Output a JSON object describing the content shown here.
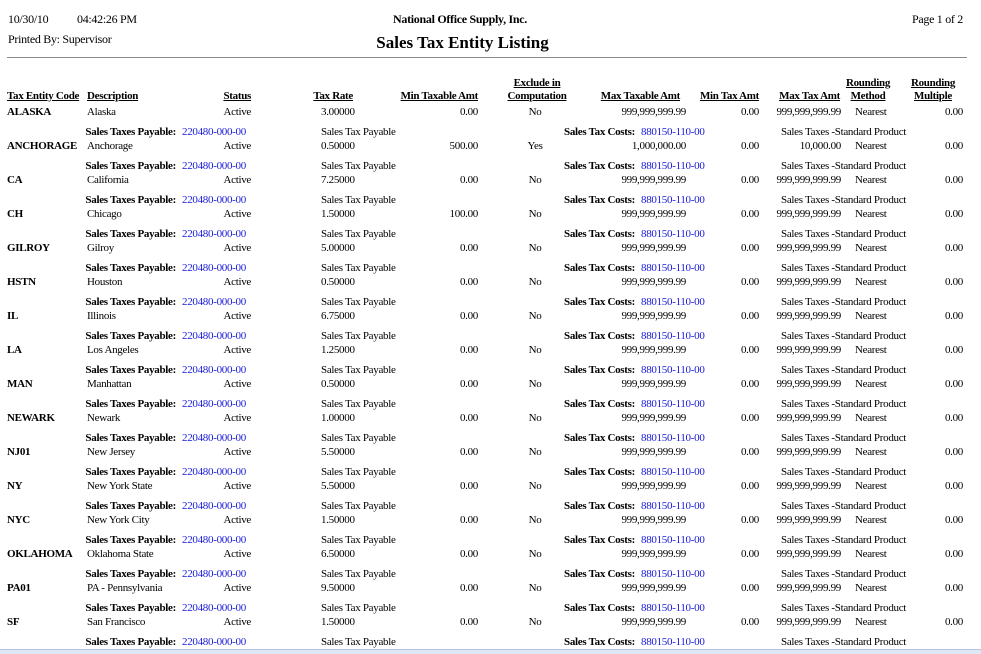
{
  "header": {
    "date": "10/30/10",
    "time": "04:42:26 PM",
    "printed_by": "Printed By: Supervisor",
    "company": "National Office Supply, Inc.",
    "title": "Sales Tax Entity Listing",
    "page": "Page 1 of 2"
  },
  "columns": {
    "code": "Tax Entity Code",
    "description": "Description",
    "status": "Status",
    "tax_rate": "Tax Rate",
    "min_taxable": "Min Taxable Amt",
    "exclude_1": "Exclude in",
    "exclude_2": "Computation",
    "max_taxable": "Max Taxable Amt",
    "min_tax": "Min Tax Amt",
    "max_tax": "Max Tax Amt",
    "method_1": "Rounding",
    "method_2": "Method",
    "multiple_1": "Rounding",
    "multiple_2": "Multiple"
  },
  "detail_labels": {
    "payable_label": "Sales Taxes Payable:",
    "payable_account": "220480-000-00",
    "payable_desc": "Sales Tax Payable",
    "costs_label": "Sales Tax Costs:",
    "costs_account": "880150-110-00",
    "costs_desc": "Sales Taxes -Standard Product"
  },
  "rows": [
    {
      "code": "ALASKA",
      "description": "Alaska",
      "status": "Active",
      "tax_rate": "3.00000",
      "min_taxable": "0.00",
      "exclude": "No",
      "max_taxable": "999,999,999.99",
      "min_tax": "0.00",
      "max_tax": "999,999,999.99",
      "method": "Nearest",
      "multiple": "0.00"
    },
    {
      "code": "ANCHORAGE",
      "description": "Anchorage",
      "status": "Active",
      "tax_rate": "0.50000",
      "min_taxable": "500.00",
      "exclude": "Yes",
      "max_taxable": "1,000,000.00",
      "min_tax": "0.00",
      "max_tax": "10,000.00",
      "method": "Nearest",
      "multiple": "0.00"
    },
    {
      "code": "CA",
      "description": "California",
      "status": "Active",
      "tax_rate": "7.25000",
      "min_taxable": "0.00",
      "exclude": "No",
      "max_taxable": "999,999,999.99",
      "min_tax": "0.00",
      "max_tax": "999,999,999.99",
      "method": "Nearest",
      "multiple": "0.00"
    },
    {
      "code": "CH",
      "description": "Chicago",
      "status": "Active",
      "tax_rate": "1.50000",
      "min_taxable": "100.00",
      "exclude": "No",
      "max_taxable": "999,999,999.99",
      "min_tax": "0.00",
      "max_tax": "999,999,999.99",
      "method": "Nearest",
      "multiple": "0.00"
    },
    {
      "code": "GILROY",
      "description": "Gilroy",
      "status": "Active",
      "tax_rate": "5.00000",
      "min_taxable": "0.00",
      "exclude": "No",
      "max_taxable": "999,999,999.99",
      "min_tax": "0.00",
      "max_tax": "999,999,999.99",
      "method": "Nearest",
      "multiple": "0.00"
    },
    {
      "code": "HSTN",
      "description": "Houston",
      "status": "Active",
      "tax_rate": "0.50000",
      "min_taxable": "0.00",
      "exclude": "No",
      "max_taxable": "999,999,999.99",
      "min_tax": "0.00",
      "max_tax": "999,999,999.99",
      "method": "Nearest",
      "multiple": "0.00"
    },
    {
      "code": "IL",
      "description": "Illinois",
      "status": "Active",
      "tax_rate": "6.75000",
      "min_taxable": "0.00",
      "exclude": "No",
      "max_taxable": "999,999,999.99",
      "min_tax": "0.00",
      "max_tax": "999,999,999.99",
      "method": "Nearest",
      "multiple": "0.00"
    },
    {
      "code": "LA",
      "description": "Los Angeles",
      "status": "Active",
      "tax_rate": "1.25000",
      "min_taxable": "0.00",
      "exclude": "No",
      "max_taxable": "999,999,999.99",
      "min_tax": "0.00",
      "max_tax": "999,999,999.99",
      "method": "Nearest",
      "multiple": "0.00"
    },
    {
      "code": "MAN",
      "description": "Manhattan",
      "status": "Active",
      "tax_rate": "0.50000",
      "min_taxable": "0.00",
      "exclude": "No",
      "max_taxable": "999,999,999.99",
      "min_tax": "0.00",
      "max_tax": "999,999,999.99",
      "method": "Nearest",
      "multiple": "0.00"
    },
    {
      "code": "NEWARK",
      "description": "Newark",
      "status": "Active",
      "tax_rate": "1.00000",
      "min_taxable": "0.00",
      "exclude": "No",
      "max_taxable": "999,999,999.99",
      "min_tax": "0.00",
      "max_tax": "999,999,999.99",
      "method": "Nearest",
      "multiple": "0.00"
    },
    {
      "code": "NJ01",
      "description": "New Jersey",
      "status": "Active",
      "tax_rate": "5.50000",
      "min_taxable": "0.00",
      "exclude": "No",
      "max_taxable": "999,999,999.99",
      "min_tax": "0.00",
      "max_tax": "999,999,999.99",
      "method": "Nearest",
      "multiple": "0.00"
    },
    {
      "code": "NY",
      "description": "New York State",
      "status": "Active",
      "tax_rate": "5.50000",
      "min_taxable": "0.00",
      "exclude": "No",
      "max_taxable": "999,999,999.99",
      "min_tax": "0.00",
      "max_tax": "999,999,999.99",
      "method": "Nearest",
      "multiple": "0.00"
    },
    {
      "code": "NYC",
      "description": "New York City",
      "status": "Active",
      "tax_rate": "1.50000",
      "min_taxable": "0.00",
      "exclude": "No",
      "max_taxable": "999,999,999.99",
      "min_tax": "0.00",
      "max_tax": "999,999,999.99",
      "method": "Nearest",
      "multiple": "0.00"
    },
    {
      "code": "OKLAHOMA",
      "description": "Oklahoma State",
      "status": "Active",
      "tax_rate": "6.50000",
      "min_taxable": "0.00",
      "exclude": "No",
      "max_taxable": "999,999,999.99",
      "min_tax": "0.00",
      "max_tax": "999,999,999.99",
      "method": "Nearest",
      "multiple": "0.00"
    },
    {
      "code": "PA01",
      "description": "PA - Pennsylvania",
      "status": "Active",
      "tax_rate": "9.50000",
      "min_taxable": "0.00",
      "exclude": "No",
      "max_taxable": "999,999,999.99",
      "min_tax": "0.00",
      "max_tax": "999,999,999.99",
      "method": "Nearest",
      "multiple": "0.00"
    },
    {
      "code": "SF",
      "description": "San Francisco",
      "status": "Active",
      "tax_rate": "1.50000",
      "min_taxable": "0.00",
      "exclude": "No",
      "max_taxable": "999,999,999.99",
      "min_tax": "0.00",
      "max_tax": "999,999,999.99",
      "method": "Nearest",
      "multiple": "0.00"
    }
  ]
}
